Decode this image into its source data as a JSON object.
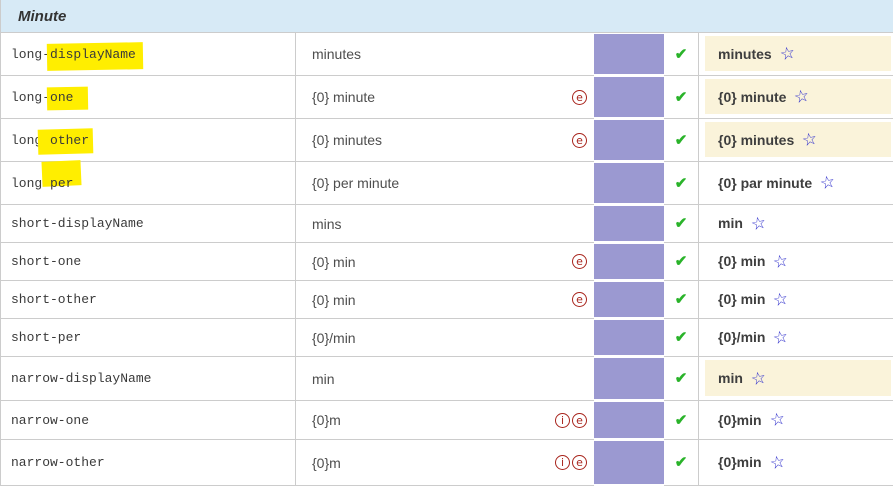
{
  "header": {
    "title": "Minute"
  },
  "glyphs": {
    "check": "✔",
    "star": "☆",
    "example": "e",
    "info": "i"
  },
  "colors": {
    "header-bg": "#d7eaf6",
    "purple": "#9b99d1",
    "check-green": "#2ab32a",
    "icon-red": "#a8241c",
    "cream": "#faf3da",
    "star-blue": "#3535cd",
    "highlight-yellow": "#ffee00",
    "border": "#cccccc"
  },
  "table": {
    "rows": [
      {
        "code": "long-displayName",
        "code_pre": "long-",
        "code_hl": "displayName",
        "english": "minutes",
        "icons": [
          "example"
        ],
        "winning": "minutes",
        "winning_highlight": true
      },
      {
        "code": "long-one",
        "code_pre": "long-",
        "code_hl": "one",
        "english": "{0} minute",
        "icons": [
          "example"
        ],
        "winning": "{0} minute",
        "winning_highlight": true
      },
      {
        "code": "long-other",
        "code_pre": "long-",
        "code_hl": "other",
        "english": "{0} minutes",
        "icons": [
          "example"
        ],
        "winning": "{0} minutes",
        "winning_highlight": true
      },
      {
        "code": "long-per",
        "code_pre": "long-",
        "code_hl": "per",
        "english": "{0} per minute",
        "icons": [],
        "winning": "{0} par minute",
        "winning_highlight": false
      },
      {
        "code": "short-displayName",
        "code_pre": "short-displayName",
        "code_hl": "",
        "english": "mins",
        "icons": [],
        "winning": "min",
        "winning_highlight": false
      },
      {
        "code": "short-one",
        "code_pre": "short-one",
        "code_hl": "",
        "english": "{0} min",
        "icons": [
          "example"
        ],
        "winning": "{0} min",
        "winning_highlight": false
      },
      {
        "code": "short-other",
        "code_pre": "short-other",
        "code_hl": "",
        "english": "{0} min",
        "icons": [
          "example"
        ],
        "winning": "{0} min",
        "winning_highlight": false
      },
      {
        "code": "short-per",
        "code_pre": "short-per",
        "code_hl": "",
        "english": "{0}/min",
        "icons": [],
        "winning": "{0}/min",
        "winning_highlight": false
      },
      {
        "code": "narrow-displayName",
        "code_pre": "narrow-displayName",
        "code_hl": "",
        "english": "min",
        "icons": [],
        "winning": "min",
        "winning_highlight": true
      },
      {
        "code": "narrow-one",
        "code_pre": "narrow-one",
        "code_hl": "",
        "english": "{0}m",
        "icons": [
          "info",
          "example"
        ],
        "winning": "{0}min",
        "winning_highlight": false
      },
      {
        "code": "narrow-other",
        "code_pre": "narrow-other",
        "code_hl": "",
        "english": "{0}m",
        "icons": [
          "info",
          "example"
        ],
        "winning": "{0}min",
        "winning_highlight": false
      }
    ]
  }
}
